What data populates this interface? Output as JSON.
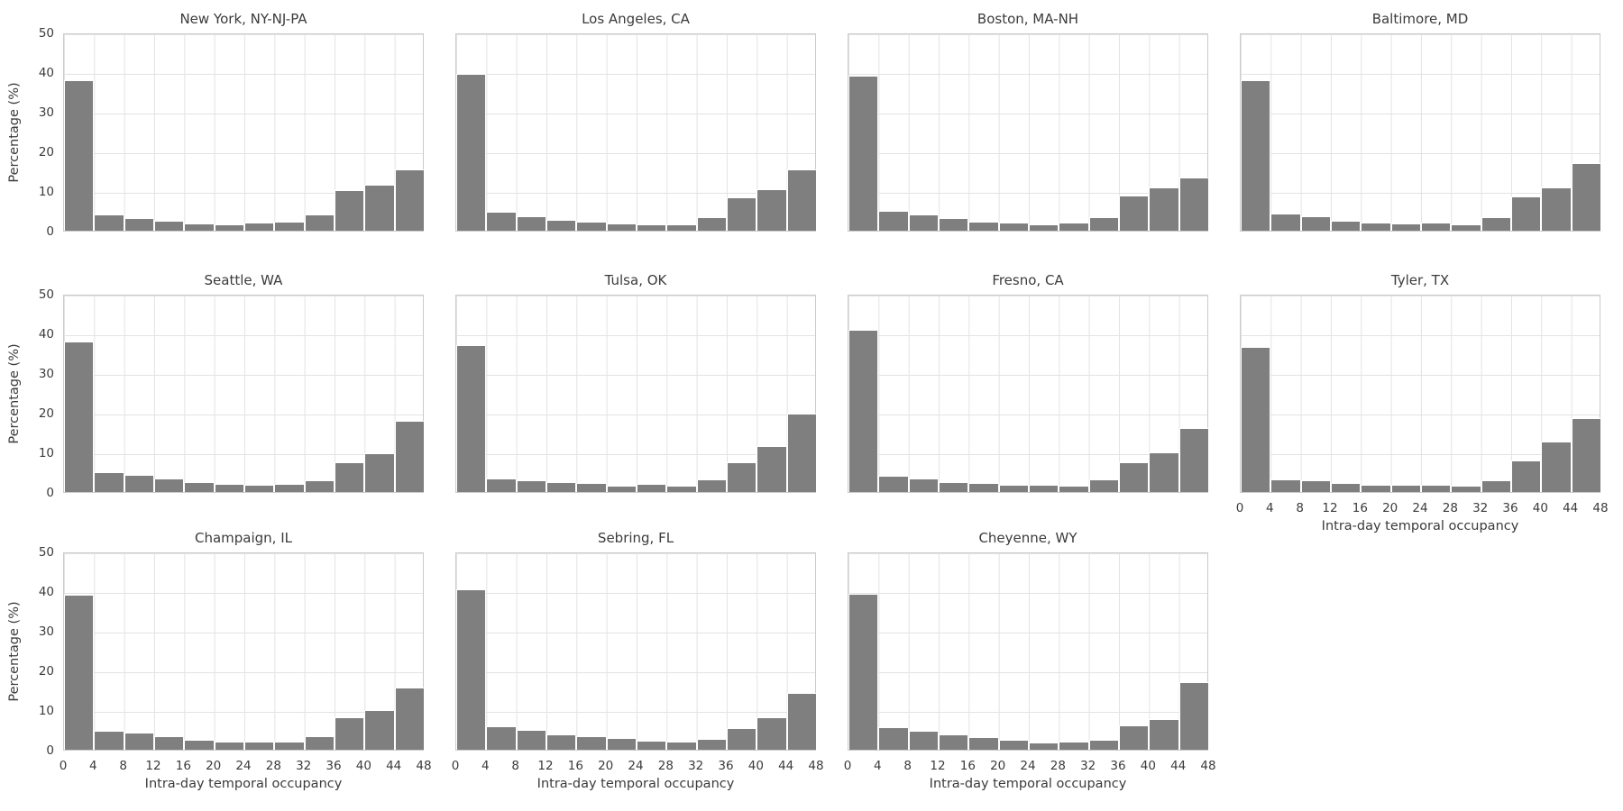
{
  "figure": {
    "ylabel": "Percentage (%)",
    "xlabel": "Intra-day temporal occupancy",
    "yticks": [
      0,
      10,
      20,
      30,
      40,
      50
    ],
    "xticks": [
      0,
      4,
      8,
      12,
      16,
      20,
      24,
      28,
      32,
      36,
      40,
      44,
      48
    ],
    "colors": {
      "bar": "#7f7f7f",
      "grid": "#e3e3e3",
      "spine": "#cbcbcb",
      "text": "#3b3b3b",
      "background": "#ffffff"
    }
  },
  "chart_data": [
    {
      "type": "bar",
      "title": "New York, NY-NJ-PA",
      "bin_start": 0,
      "bin_width": 4,
      "categories": [
        0,
        4,
        8,
        12,
        16,
        20,
        24,
        28,
        32,
        36,
        40,
        44
      ],
      "values": [
        38.0,
        4.1,
        3.2,
        2.4,
        1.9,
        1.7,
        2.1,
        2.3,
        4.2,
        10.2,
        11.7,
        15.5
      ],
      "xlabel": "Intra-day temporal occupancy",
      "ylabel": "Percentage (%)",
      "ylim": [
        0,
        50
      ],
      "grid": true,
      "show_yticklabels": true,
      "show_xticklabels": false
    },
    {
      "type": "bar",
      "title": "Los Angeles, CA",
      "bin_start": 0,
      "bin_width": 4,
      "categories": [
        0,
        4,
        8,
        12,
        16,
        20,
        24,
        28,
        32,
        36,
        40,
        44
      ],
      "values": [
        39.5,
        4.7,
        3.7,
        2.7,
        2.3,
        1.9,
        1.6,
        1.6,
        3.3,
        8.5,
        10.4,
        15.5
      ],
      "xlabel": "Intra-day temporal occupancy",
      "ylabel": "Percentage (%)",
      "ylim": [
        0,
        50
      ],
      "grid": true,
      "show_yticklabels": false,
      "show_xticklabels": false
    },
    {
      "type": "bar",
      "title": "Boston, MA-NH",
      "bin_start": 0,
      "bin_width": 4,
      "categories": [
        0,
        4,
        8,
        12,
        16,
        20,
        24,
        28,
        32,
        36,
        40,
        44
      ],
      "values": [
        39.0,
        5.0,
        4.1,
        3.1,
        2.3,
        2.0,
        1.6,
        2.1,
        3.3,
        8.8,
        10.8,
        13.5
      ],
      "xlabel": "Intra-day temporal occupancy",
      "ylabel": "Percentage (%)",
      "ylim": [
        0,
        50
      ],
      "grid": true,
      "show_yticklabels": false,
      "show_xticklabels": false
    },
    {
      "type": "bar",
      "title": "Baltimore, MD",
      "bin_start": 0,
      "bin_width": 4,
      "categories": [
        0,
        4,
        8,
        12,
        16,
        20,
        24,
        28,
        32,
        36,
        40,
        44
      ],
      "values": [
        38.0,
        4.4,
        3.7,
        2.5,
        2.1,
        1.9,
        2.0,
        1.6,
        3.4,
        8.6,
        11.0,
        17.0
      ],
      "xlabel": "Intra-day temporal occupancy",
      "ylabel": "Percentage (%)",
      "ylim": [
        0,
        50
      ],
      "grid": true,
      "show_yticklabels": false,
      "show_xticklabels": false
    },
    {
      "type": "bar",
      "title": "Seattle, WA",
      "bin_start": 0,
      "bin_width": 4,
      "categories": [
        0,
        4,
        8,
        12,
        16,
        20,
        24,
        28,
        32,
        36,
        40,
        44
      ],
      "values": [
        38.0,
        5.1,
        4.3,
        3.4,
        2.5,
        2.0,
        1.8,
        2.0,
        2.9,
        7.5,
        9.7,
        18.0
      ],
      "xlabel": "Intra-day temporal occupancy",
      "ylabel": "Percentage (%)",
      "ylim": [
        0,
        50
      ],
      "grid": true,
      "show_yticklabels": true,
      "show_xticklabels": false
    },
    {
      "type": "bar",
      "title": "Tulsa, OK",
      "bin_start": 0,
      "bin_width": 4,
      "categories": [
        0,
        4,
        8,
        12,
        16,
        20,
        24,
        28,
        32,
        36,
        40,
        44
      ],
      "values": [
        37.0,
        3.5,
        3.0,
        2.6,
        2.3,
        1.7,
        2.1,
        1.6,
        3.1,
        7.4,
        11.5,
        19.7
      ],
      "xlabel": "Intra-day temporal occupancy",
      "ylabel": "Percentage (%)",
      "ylim": [
        0,
        50
      ],
      "grid": true,
      "show_yticklabels": false,
      "show_xticklabels": false
    },
    {
      "type": "bar",
      "title": "Fresno, CA",
      "bin_start": 0,
      "bin_width": 4,
      "categories": [
        0,
        4,
        8,
        12,
        16,
        20,
        24,
        28,
        32,
        36,
        40,
        44
      ],
      "values": [
        41.0,
        4.0,
        3.4,
        2.6,
        2.2,
        1.9,
        1.9,
        1.5,
        3.1,
        7.6,
        10.1,
        16.1
      ],
      "xlabel": "Intra-day temporal occupancy",
      "ylabel": "Percentage (%)",
      "ylim": [
        0,
        50
      ],
      "grid": true,
      "show_yticklabels": false,
      "show_xticklabels": false
    },
    {
      "type": "bar",
      "title": "Tyler, TX",
      "bin_start": 0,
      "bin_width": 4,
      "categories": [
        0,
        4,
        8,
        12,
        16,
        20,
        24,
        28,
        32,
        36,
        40,
        44
      ],
      "values": [
        36.6,
        3.2,
        2.9,
        2.3,
        1.9,
        1.9,
        1.9,
        1.6,
        2.9,
        8.0,
        12.8,
        18.6
      ],
      "xlabel": "Intra-day temporal occupancy",
      "ylabel": "Percentage (%)",
      "ylim": [
        0,
        50
      ],
      "grid": true,
      "show_yticklabels": false,
      "show_xticklabels": true
    },
    {
      "type": "bar",
      "title": "Champaign, IL",
      "bin_start": 0,
      "bin_width": 4,
      "categories": [
        0,
        4,
        8,
        12,
        16,
        20,
        24,
        28,
        32,
        36,
        40,
        44
      ],
      "values": [
        39.0,
        4.8,
        4.3,
        3.5,
        2.6,
        2.1,
        2.1,
        2.1,
        3.4,
        8.2,
        10.1,
        15.6
      ],
      "xlabel": "Intra-day temporal occupancy",
      "ylabel": "Percentage (%)",
      "ylim": [
        0,
        50
      ],
      "grid": true,
      "show_yticklabels": true,
      "show_xticklabels": true
    },
    {
      "type": "bar",
      "title": "Sebring, FL",
      "bin_start": 0,
      "bin_width": 4,
      "categories": [
        0,
        4,
        8,
        12,
        16,
        20,
        24,
        28,
        32,
        36,
        40,
        44
      ],
      "values": [
        40.4,
        5.9,
        4.9,
        3.8,
        3.3,
        3.0,
        2.3,
        2.0,
        2.8,
        5.5,
        8.1,
        14.4
      ],
      "xlabel": "Intra-day temporal occupancy",
      "ylabel": "Percentage (%)",
      "ylim": [
        0,
        50
      ],
      "grid": true,
      "show_yticklabels": false,
      "show_xticklabels": true
    },
    {
      "type": "bar",
      "title": "Cheyenne, WY",
      "bin_start": 0,
      "bin_width": 4,
      "categories": [
        0,
        4,
        8,
        12,
        16,
        20,
        24,
        28,
        32,
        36,
        40,
        44
      ],
      "values": [
        39.3,
        5.6,
        4.8,
        3.9,
        3.1,
        2.4,
        1.9,
        2.0,
        2.5,
        6.1,
        7.8,
        17.0
      ],
      "xlabel": "Intra-day temporal occupancy",
      "ylabel": "Percentage (%)",
      "ylim": [
        0,
        50
      ],
      "grid": true,
      "show_yticklabels": false,
      "show_xticklabels": true
    }
  ]
}
